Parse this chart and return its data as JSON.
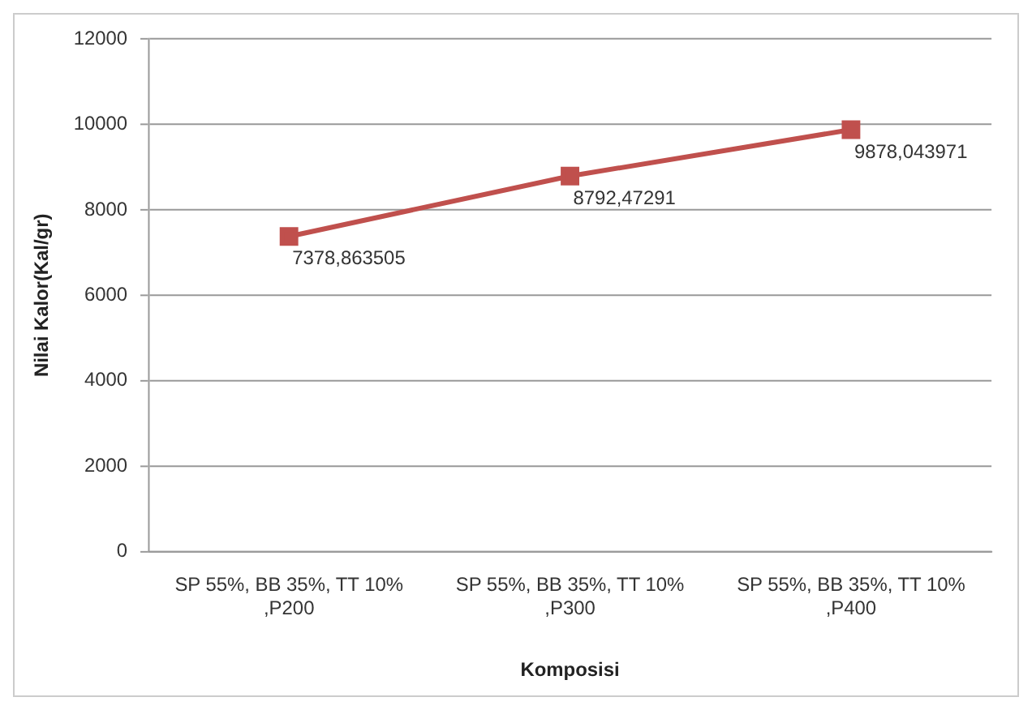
{
  "chart_data": {
    "type": "line",
    "xlabel": "Komposisi",
    "ylabel": "Nilai Kalor(Kal/gr)",
    "categories": [
      "SP 55%, BB 35%, TT 10%,P200",
      "SP 55%, BB 35%, TT 10%,P300",
      "SP 55%, BB 35%, TT 10%,P400"
    ],
    "series": [
      {
        "color": "#c0504d",
        "values": [
          7378.863505,
          8792.47291,
          9878.043971
        ],
        "value_labels": [
          "7378,863505",
          "8792,47291",
          "9878,043971"
        ]
      }
    ],
    "ylim": [
      0,
      12000
    ],
    "yticks": [
      0,
      2000,
      4000,
      6000,
      8000,
      10000,
      12000
    ],
    "grid": "y",
    "legend": false,
    "marker": "square",
    "line_style": "solid"
  }
}
